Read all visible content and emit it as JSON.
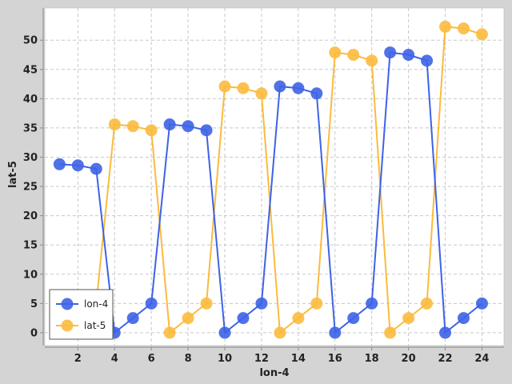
{
  "chart_data": {
    "type": "line",
    "xlabel": "lon-4",
    "ylabel": "lat-5",
    "xlim": [
      0.2,
      25.2
    ],
    "ylim": [
      -2.2,
      55.5
    ],
    "xticks": [
      2,
      4,
      6,
      8,
      10,
      12,
      14,
      16,
      18,
      20,
      22,
      24
    ],
    "yticks": [
      0,
      5,
      10,
      15,
      20,
      25,
      30,
      35,
      40,
      45,
      50
    ],
    "grid": true,
    "legend_position": "bottom-left",
    "series": [
      {
        "name": "lon-4",
        "color": "#3d63e6",
        "points": [
          [
            1,
            28.8
          ],
          [
            2,
            28.6
          ],
          [
            3,
            28.0
          ],
          [
            4,
            0
          ],
          [
            5,
            2.5
          ],
          [
            6,
            5
          ],
          [
            7,
            35.6
          ],
          [
            8,
            35.3
          ],
          [
            9,
            34.6
          ],
          [
            10,
            0
          ],
          [
            11,
            2.5
          ],
          [
            12,
            5
          ],
          [
            13,
            42.1
          ],
          [
            14,
            41.8
          ],
          [
            15,
            40.9
          ],
          [
            16,
            0
          ],
          [
            17,
            2.5
          ],
          [
            18,
            5
          ],
          [
            19,
            47.9
          ],
          [
            20,
            47.5
          ],
          [
            21,
            46.5
          ],
          [
            22,
            0
          ],
          [
            23,
            2.5
          ],
          [
            24,
            5
          ]
        ]
      },
      {
        "name": "lat-5",
        "color": "#fbbb3e",
        "points": [
          [
            3,
            5
          ],
          [
            4,
            35.6
          ],
          [
            5,
            35.3
          ],
          [
            6,
            34.6
          ],
          [
            7,
            0
          ],
          [
            8,
            2.5
          ],
          [
            9,
            5
          ],
          [
            10,
            42.1
          ],
          [
            11,
            41.8
          ],
          [
            12,
            40.9
          ],
          [
            13,
            0
          ],
          [
            14,
            2.5
          ],
          [
            15,
            5
          ],
          [
            16,
            47.9
          ],
          [
            17,
            47.5
          ],
          [
            18,
            46.5
          ],
          [
            19,
            0
          ],
          [
            20,
            2.5
          ],
          [
            21,
            5
          ],
          [
            22,
            52.3
          ],
          [
            23,
            52.0
          ],
          [
            24,
            51.0
          ]
        ]
      }
    ]
  }
}
